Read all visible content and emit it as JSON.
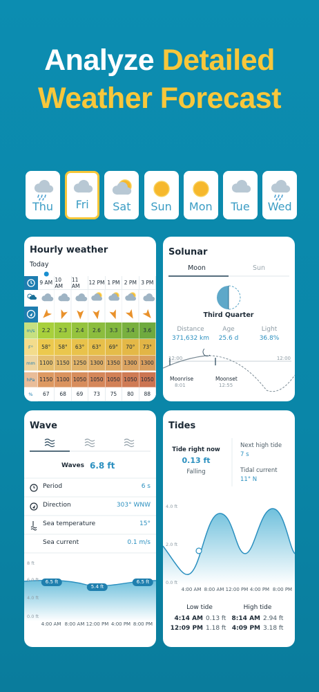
{
  "header": {
    "title_part1": "Analyze",
    "title_part2": "Detailed",
    "title_line2": "Weather Forecast"
  },
  "days": [
    "Thu",
    "Fri",
    "Sat",
    "Sun",
    "Mon",
    "Tue",
    "Wed"
  ],
  "hourly": {
    "title": "Hourly weather",
    "subtitle": "Today",
    "times": [
      "9 AM",
      "10 AM",
      "11 AM",
      "12 PM",
      "1 PM",
      "2 PM",
      "3 PM"
    ],
    "rows": [
      {
        "unit": "m/s",
        "values": [
          2.2,
          2.3,
          2.4,
          2.6,
          3.3,
          3.4,
          3.6
        ]
      },
      {
        "unit": "F°",
        "values": [
          "58°",
          "58°",
          "63°",
          "63°",
          "69°",
          "70°",
          "73°"
        ]
      },
      {
        "unit": "mm",
        "values": [
          1100,
          1150,
          1250,
          1300,
          1350,
          1300,
          1300
        ]
      },
      {
        "unit": "hPa",
        "values": [
          1150,
          1100,
          1050,
          1050,
          1050,
          1050,
          1050
        ]
      },
      {
        "unit": "%",
        "values": [
          67,
          68,
          69,
          73,
          75,
          80,
          88
        ]
      }
    ]
  },
  "solunar": {
    "title": "Solunar",
    "tabs": [
      "Moon",
      "Sun"
    ],
    "phase": "Third Quarter",
    "stats": [
      {
        "label": "Distance",
        "value": "371,632 km"
      },
      {
        "label": "Age",
        "value": "25.6 d"
      },
      {
        "label": "Light",
        "value": "36.8%"
      }
    ],
    "chart_start": "12:00",
    "chart_end": "12:00",
    "moonrise": {
      "label": "Moonrise",
      "time": "8:01"
    },
    "moonset": {
      "label": "Moonset",
      "time": "12:55"
    }
  },
  "wave": {
    "title": "Wave",
    "waves_label": "Waves",
    "waves_value": "6.8 ft",
    "rows": [
      {
        "label": "Period",
        "value": "6 s"
      },
      {
        "label": "Direction",
        "value": "303° WNW"
      },
      {
        "label": "Sea temperature",
        "value": "15°"
      },
      {
        "label": "Sea current",
        "value": "0.1 m/s"
      }
    ],
    "y_labels": [
      "8 ft",
      "6.0 ft",
      "4.0 ft",
      "0.0 ft"
    ],
    "x_labels": [
      "4:00 AM",
      "8:00 AM",
      "12:00 PM",
      "4:00 PM",
      "8:00 PM"
    ],
    "bubbles": [
      "6.5 ft",
      "5.4 ft",
      "6.5 ft"
    ]
  },
  "tides": {
    "title": "Tides",
    "now_label": "Tide right now",
    "now_value": "0.13 ft",
    "now_state": "Falling",
    "next_label": "Next high tide",
    "next_value": "7 s",
    "current_label": "Tidal current",
    "current_value": "11° N",
    "y_labels": [
      "4.0 ft",
      "2.0 ft",
      "0.0 ft"
    ],
    "x_labels": [
      "4:00 AM",
      "8:00 AM",
      "12:00 PM",
      "4:00 PM",
      "8:00 PM"
    ],
    "low_title": "Low tide",
    "high_title": "High tide",
    "low": [
      {
        "time": "4:14 AM",
        "height": "0.13 ft"
      },
      {
        "time": "12:09 PM",
        "height": "1.18 ft"
      }
    ],
    "high": [
      {
        "time": "8:14 AM",
        "height": "2.94 ft"
      },
      {
        "time": "4:09 PM",
        "height": "3.18 ft"
      }
    ]
  }
}
